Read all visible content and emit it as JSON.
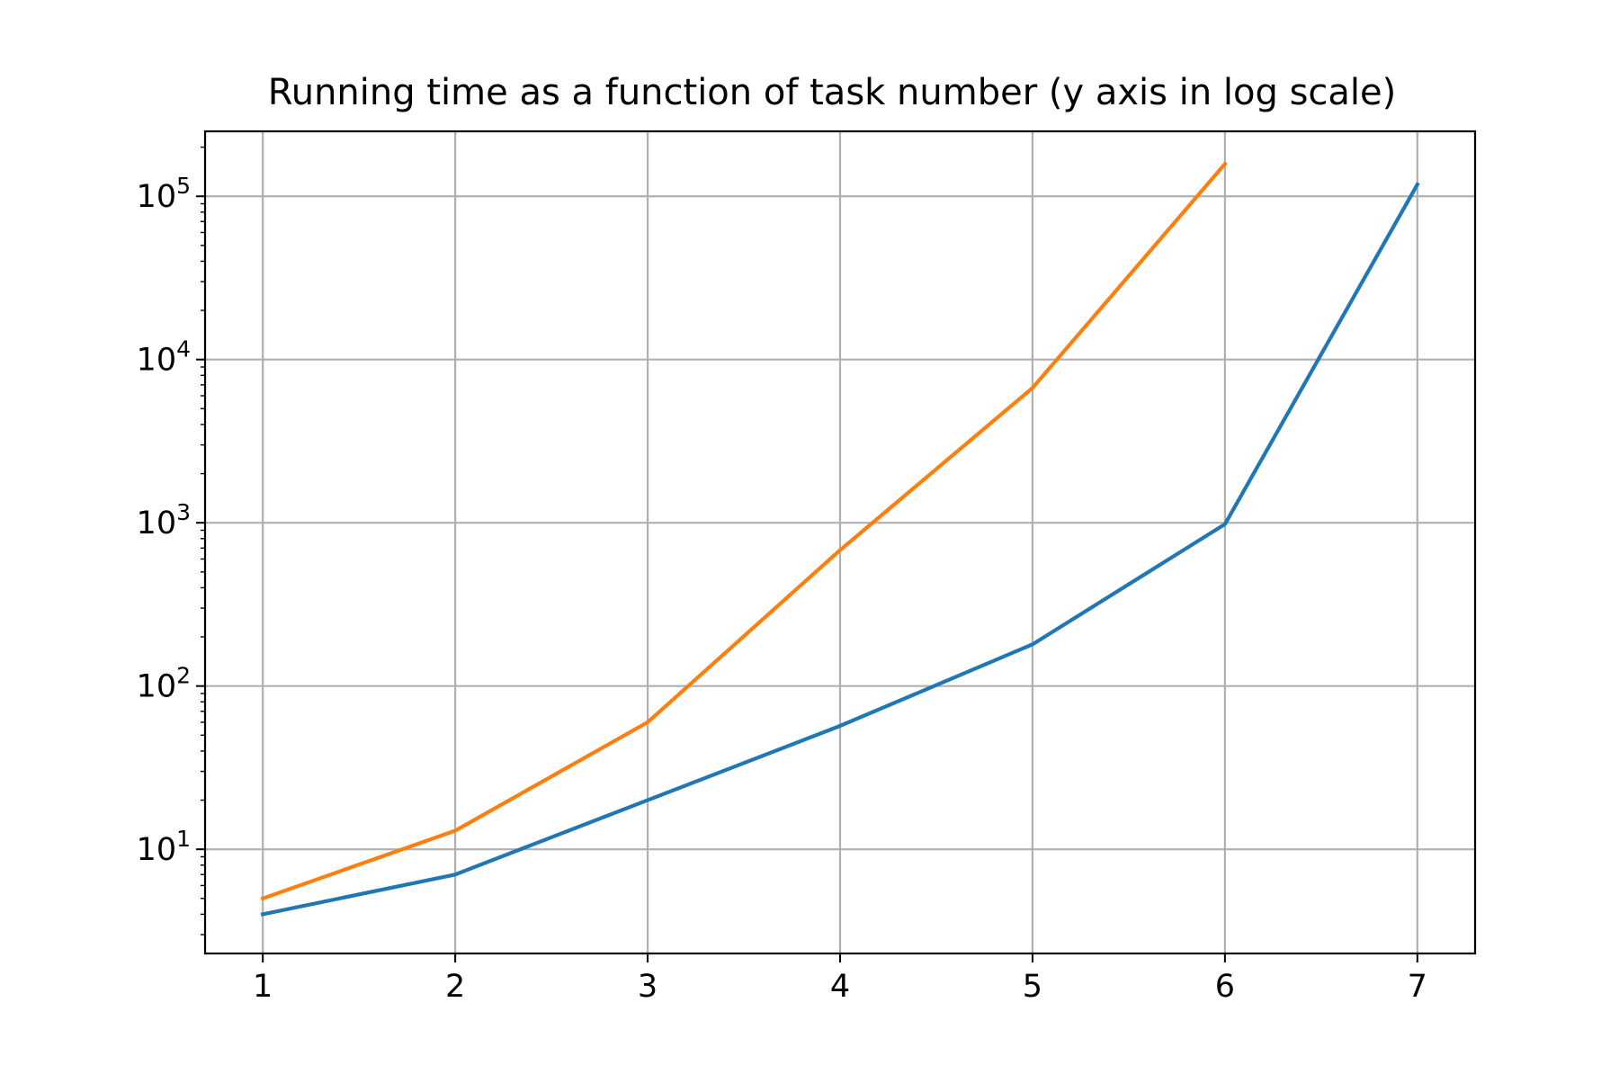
{
  "chart_data": {
    "type": "line",
    "title": "Running time as a function of task number (y axis in log scale)",
    "xlabel": "",
    "ylabel": "",
    "x_scale": "linear",
    "y_scale": "log",
    "xlim": [
      0.7,
      7.3
    ],
    "ylim": [
      2.3,
      250000
    ],
    "grid": true,
    "legend": "none",
    "x_ticks": [
      1,
      2,
      3,
      4,
      5,
      6,
      7
    ],
    "y_ticks": [
      {
        "base": "10",
        "exp": "1",
        "value": 10
      },
      {
        "base": "10",
        "exp": "2",
        "value": 100
      },
      {
        "base": "10",
        "exp": "3",
        "value": 1000
      },
      {
        "base": "10",
        "exp": "4",
        "value": 10000
      },
      {
        "base": "10",
        "exp": "5",
        "value": 100000
      }
    ],
    "series": [
      {
        "color": "#1f77b4",
        "x": [
          1,
          2,
          3,
          4,
          5,
          6,
          7
        ],
        "y": [
          4,
          7,
          20,
          57,
          180,
          980,
          118000
        ]
      },
      {
        "color": "#ff7f0e",
        "x": [
          1,
          2,
          3,
          4,
          5,
          6
        ],
        "y": [
          5,
          13,
          60,
          680,
          6700,
          158000
        ]
      }
    ]
  }
}
